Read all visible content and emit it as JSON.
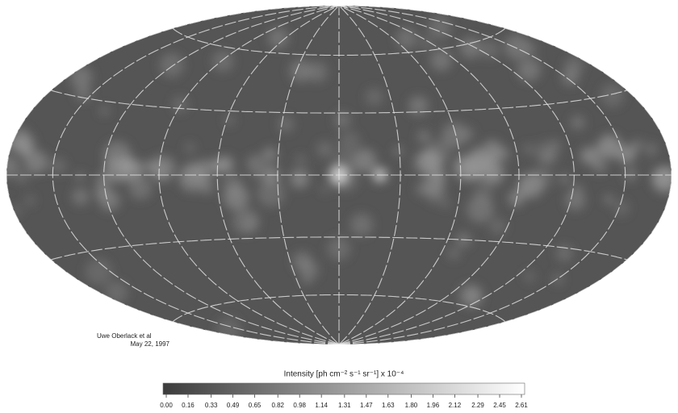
{
  "map": {
    "credit": [
      "Uwe Oberlack et al",
      "May 22, 1997"
    ]
  },
  "colorbar": {
    "label": "Intensity [ph cm⁻² s⁻¹ sr⁻¹] x 10⁻⁴",
    "ticks": [
      {
        "value": 0,
        "label": "0.00"
      },
      0.16,
      0.33,
      0.49,
      0.65,
      0.82,
      0.98,
      1.14,
      1.31,
      1.47,
      1.63,
      {
        "value": 1.8,
        "label": "1.80"
      },
      1.96,
      2.12,
      2.29,
      2.45,
      2.61
    ]
  }
}
